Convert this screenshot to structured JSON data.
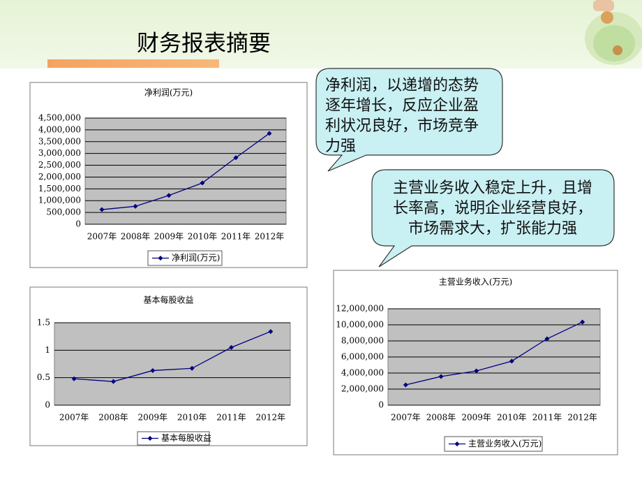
{
  "header": {
    "title": "财务报表摘要"
  },
  "callouts": [
    "净利润，以递增的态势逐年增长，反应企业盈利状况良好，市场竞争力强",
    "主营业务收入稳定上升，且增长率高，说明企业经营良好，市场需求大，扩张能力强"
  ],
  "chart_data": [
    {
      "type": "line",
      "title": "净利润(万元)",
      "categories": [
        "2007年",
        "2008年",
        "2009年",
        "2010年",
        "2011年",
        "2012年"
      ],
      "series": [
        {
          "name": "净利润(万元)",
          "color": "#000080",
          "values": [
            620000,
            760000,
            1220000,
            1750000,
            2820000,
            3850000
          ]
        }
      ],
      "ylim": [
        0,
        4500000
      ],
      "yticks": [
        0,
        {
          "value": 500000,
          "label": "500,000"
        },
        {
          "value": 1000000,
          "label": "1,000,000"
        },
        {
          "value": 1500000,
          "label": "1,500,000"
        },
        {
          "value": 2000000,
          "label": "2,000,000"
        },
        {
          "value": 2500000,
          "label": "2,500,000"
        },
        {
          "value": 3000000,
          "label": "3,000,000"
        },
        {
          "value": 3500000,
          "label": "3,500,000"
        },
        {
          "value": 4000000,
          "label": "4,000,000"
        },
        {
          "value": 4500000,
          "label": "4,500,000"
        }
      ],
      "grid": true,
      "legend": "bottom"
    },
    {
      "type": "line",
      "title": "基本每股收益",
      "categories": [
        "2007年",
        "2008年",
        "2009年",
        "2010年",
        "2011年",
        "2012年"
      ],
      "series": [
        {
          "name": "基本每股收益",
          "color": "#000080",
          "values": [
            0.48,
            0.43,
            0.63,
            0.67,
            1.05,
            1.34
          ]
        }
      ],
      "ylim": [
        0,
        1.5
      ],
      "yticks": [
        0,
        0.5,
        1,
        1.5
      ],
      "grid": true,
      "legend": "bottom"
    },
    {
      "type": "line",
      "title": "主营业务收入(万元)",
      "categories": [
        "2007年",
        "2008年",
        "2009年",
        "2010年",
        "2011年",
        "2012年"
      ],
      "series": [
        {
          "name": "主营业务收入(万元)",
          "color": "#000080",
          "values": [
            2520000,
            3570000,
            4260000,
            5480000,
            8260000,
            10350000
          ]
        }
      ],
      "ylim": [
        0,
        12000000
      ],
      "yticks": [
        0,
        {
          "value": 2000000,
          "label": "2,000,000"
        },
        {
          "value": 4000000,
          "label": "4,000,000"
        },
        {
          "value": 6000000,
          "label": "6,000,000"
        },
        {
          "value": 8000000,
          "label": "8,000,000"
        },
        {
          "value": 10000000,
          "label": "10,000,000"
        },
        {
          "value": 12000000,
          "label": "12,000,000"
        }
      ],
      "grid": true,
      "legend": "bottom"
    }
  ]
}
